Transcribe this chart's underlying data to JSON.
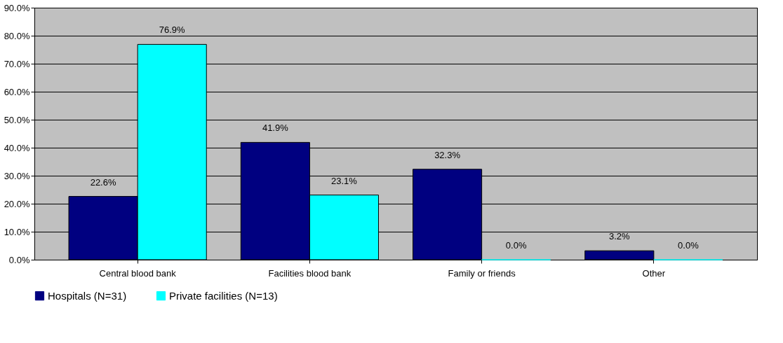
{
  "chart_data": {
    "type": "bar",
    "categories": [
      "Central blood bank",
      "Facilities blood bank",
      "Family or friends",
      "Other"
    ],
    "series": [
      {
        "name": "Hospitals (N=31)",
        "color": "#000080",
        "values": [
          22.6,
          41.9,
          32.3,
          3.2
        ],
        "value_labels": [
          "22.6%",
          "41.9%",
          "32.3%",
          "3.2%"
        ]
      },
      {
        "name": "Private facilities (N=13)",
        "color": "#00ffff",
        "values": [
          76.9,
          23.1,
          0.0,
          0.0
        ],
        "value_labels": [
          "76.9%",
          "23.1%",
          "0.0%",
          "0.0%"
        ]
      }
    ],
    "ylim": [
      0,
      90
    ],
    "yticks": [
      {
        "value": 0,
        "label": "0.0%"
      },
      {
        "value": 10,
        "label": "10.0%"
      },
      {
        "value": 20,
        "label": "20.0%"
      },
      {
        "value": 30,
        "label": "30.0%"
      },
      {
        "value": 40,
        "label": "40.0%"
      },
      {
        "value": 50,
        "label": "50.0%"
      },
      {
        "value": 60,
        "label": "60.0%"
      },
      {
        "value": 70,
        "label": "70.0%"
      },
      {
        "value": 80,
        "label": "80.0%"
      },
      {
        "value": 90,
        "label": "90.0%"
      }
    ],
    "grid": "y",
    "legend": "bottom"
  }
}
